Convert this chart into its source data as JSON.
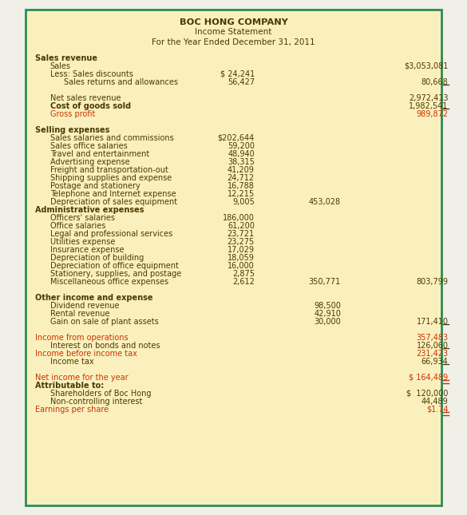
{
  "bg_color": "#FAF0BE",
  "border_color": "#2E8B57",
  "text_color": "#4B3A00",
  "red_color": "#CC3300",
  "title1": "BOC HONG COMPANY",
  "title2": "Income Statement",
  "title3": "For the Year Ended December 31, 2011",
  "rows": [
    {
      "label": "Sales revenue",
      "c1": "",
      "c2": "",
      "c3": "",
      "bold": true,
      "indent": 0,
      "color": "normal"
    },
    {
      "label": "Sales",
      "c1": "",
      "c2": "",
      "c3": "$3,053,081",
      "bold": false,
      "indent": 1,
      "color": "normal"
    },
    {
      "label": "Less: Sales discounts",
      "c1": "$ 24,241",
      "c2": "",
      "c3": "",
      "bold": false,
      "indent": 1,
      "color": "normal"
    },
    {
      "label": "Sales returns and allowances",
      "c1": "56,427",
      "c2": "",
      "c3": "80,668",
      "bold": false,
      "indent": 2,
      "color": "normal",
      "underline_c1": true,
      "underline_c3": true
    },
    {
      "label": "",
      "c1": "",
      "c2": "",
      "c3": "",
      "bold": false,
      "indent": 0,
      "color": "normal",
      "spacer": true
    },
    {
      "label": "Net sales revenue",
      "c1": "",
      "c2": "",
      "c3": "2,972,413",
      "bold": false,
      "indent": 1,
      "color": "normal"
    },
    {
      "label": "Cost of goods sold",
      "c1": "",
      "c2": "",
      "c3": "1,982,541",
      "bold": true,
      "indent": 1,
      "color": "normal",
      "underline_c3": true
    },
    {
      "label": "Gross profit",
      "c1": "",
      "c2": "",
      "c3": "989,872",
      "bold": false,
      "indent": 1,
      "color": "red"
    },
    {
      "label": "",
      "c1": "",
      "c2": "",
      "c3": "",
      "bold": false,
      "indent": 0,
      "color": "normal",
      "spacer": true
    },
    {
      "label": "Selling expenses",
      "c1": "",
      "c2": "",
      "c3": "",
      "bold": true,
      "indent": 0,
      "color": "normal"
    },
    {
      "label": "Sales salaries and commissions",
      "c1": "$202,644",
      "c2": "",
      "c3": "",
      "bold": false,
      "indent": 1,
      "color": "normal"
    },
    {
      "label": "Sales office salaries",
      "c1": "59,200",
      "c2": "",
      "c3": "",
      "bold": false,
      "indent": 1,
      "color": "normal"
    },
    {
      "label": "Travel and entertainment",
      "c1": "48,940",
      "c2": "",
      "c3": "",
      "bold": false,
      "indent": 1,
      "color": "normal"
    },
    {
      "label": "Advertising expense",
      "c1": "38,315",
      "c2": "",
      "c3": "",
      "bold": false,
      "indent": 1,
      "color": "normal"
    },
    {
      "label": "Freight and transportation-out",
      "c1": "41,209",
      "c2": "",
      "c3": "",
      "bold": false,
      "indent": 1,
      "color": "normal"
    },
    {
      "label": "Shipping supplies and expense",
      "c1": "24,712",
      "c2": "",
      "c3": "",
      "bold": false,
      "indent": 1,
      "color": "normal"
    },
    {
      "label": "Postage and stationery",
      "c1": "16,788",
      "c2": "",
      "c3": "",
      "bold": false,
      "indent": 1,
      "color": "normal"
    },
    {
      "label": "Telephone and Internet expense",
      "c1": "12,215",
      "c2": "",
      "c3": "",
      "bold": false,
      "indent": 1,
      "color": "normal"
    },
    {
      "label": "Depreciation of sales equipment",
      "c1": "9,005",
      "c2": "453,028",
      "c3": "",
      "bold": false,
      "indent": 1,
      "color": "normal",
      "underline_c1": true
    },
    {
      "label": "Administrative expenses",
      "c1": "",
      "c2": "",
      "c3": "",
      "bold": true,
      "indent": 0,
      "color": "normal"
    },
    {
      "label": "Officers' salaries",
      "c1": "186,000",
      "c2": "",
      "c3": "",
      "bold": false,
      "indent": 1,
      "color": "normal"
    },
    {
      "label": "Office salaries",
      "c1": "61,200",
      "c2": "",
      "c3": "",
      "bold": false,
      "indent": 1,
      "color": "normal"
    },
    {
      "label": "Legal and professional services",
      "c1": "23,721",
      "c2": "",
      "c3": "",
      "bold": false,
      "indent": 1,
      "color": "normal"
    },
    {
      "label": "Utilities expense",
      "c1": "23,275",
      "c2": "",
      "c3": "",
      "bold": false,
      "indent": 1,
      "color": "normal"
    },
    {
      "label": "Insurance expense",
      "c1": "17,029",
      "c2": "",
      "c3": "",
      "bold": false,
      "indent": 1,
      "color": "normal"
    },
    {
      "label": "Depreciation of building",
      "c1": "18,059",
      "c2": "",
      "c3": "",
      "bold": false,
      "indent": 1,
      "color": "normal"
    },
    {
      "label": "Depreciation of office equipment",
      "c1": "16,000",
      "c2": "",
      "c3": "",
      "bold": false,
      "indent": 1,
      "color": "normal"
    },
    {
      "label": "Stationery, supplies, and postage",
      "c1": "2,875",
      "c2": "",
      "c3": "",
      "bold": false,
      "indent": 1,
      "color": "normal"
    },
    {
      "label": "Miscellaneous office expenses",
      "c1": "2,612",
      "c2": "350,771",
      "c3": "803,799",
      "bold": false,
      "indent": 1,
      "color": "normal",
      "underline_c1": true
    },
    {
      "label": "",
      "c1": "",
      "c2": "",
      "c3": "",
      "bold": false,
      "indent": 0,
      "color": "normal",
      "spacer": true
    },
    {
      "label": "Other income and expense",
      "c1": "",
      "c2": "",
      "c3": "",
      "bold": true,
      "indent": 0,
      "color": "normal"
    },
    {
      "label": "Dividend revenue",
      "c1": "",
      "c2": "98,500",
      "c3": "",
      "bold": false,
      "indent": 1,
      "color": "normal"
    },
    {
      "label": "Rental revenue",
      "c1": "",
      "c2": "42,910",
      "c3": "",
      "bold": false,
      "indent": 1,
      "color": "normal"
    },
    {
      "label": "Gain on sale of plant assets",
      "c1": "",
      "c2": "30,000",
      "c3": "171,410",
      "bold": false,
      "indent": 1,
      "color": "normal",
      "underline_c2": true,
      "underline_c3": true
    },
    {
      "label": "",
      "c1": "",
      "c2": "",
      "c3": "",
      "bold": false,
      "indent": 0,
      "color": "normal",
      "spacer": true
    },
    {
      "label": "Income from operations",
      "c1": "",
      "c2": "",
      "c3": "357,483",
      "bold": false,
      "indent": 0,
      "color": "red"
    },
    {
      "label": "Interest on bonds and notes",
      "c1": "",
      "c2": "",
      "c3": "126,060",
      "bold": false,
      "indent": 1,
      "color": "normal",
      "underline_c3": true
    },
    {
      "label": "Income before income tax",
      "c1": "",
      "c2": "",
      "c3": "231,423",
      "bold": false,
      "indent": 0,
      "color": "red"
    },
    {
      "label": "Income tax",
      "c1": "",
      "c2": "",
      "c3": "66,934",
      "bold": false,
      "indent": 1,
      "color": "normal",
      "underline_c3": true
    },
    {
      "label": "",
      "c1": "",
      "c2": "",
      "c3": "",
      "bold": false,
      "indent": 0,
      "color": "normal",
      "spacer": true
    },
    {
      "label": "Net income for the year",
      "c1": "",
      "c2": "",
      "c3": "$ 164,489",
      "bold": false,
      "indent": 0,
      "color": "red",
      "double_underline_c3": true
    },
    {
      "label": "Attributable to:",
      "c1": "",
      "c2": "",
      "c3": "",
      "bold": true,
      "indent": 0,
      "color": "normal"
    },
    {
      "label": "Shareholders of Boc Hong",
      "c1": "",
      "c2": "",
      "c3": "$  120,000",
      "bold": false,
      "indent": 1,
      "color": "normal"
    },
    {
      "label": "Non-controlling interest",
      "c1": "",
      "c2": "",
      "c3": "44,489",
      "bold": false,
      "indent": 1,
      "color": "normal"
    },
    {
      "label": "Earnings per share",
      "c1": "",
      "c2": "",
      "c3": "$1.74",
      "bold": false,
      "indent": 0,
      "color": "red",
      "double_underline_c3": true
    }
  ]
}
